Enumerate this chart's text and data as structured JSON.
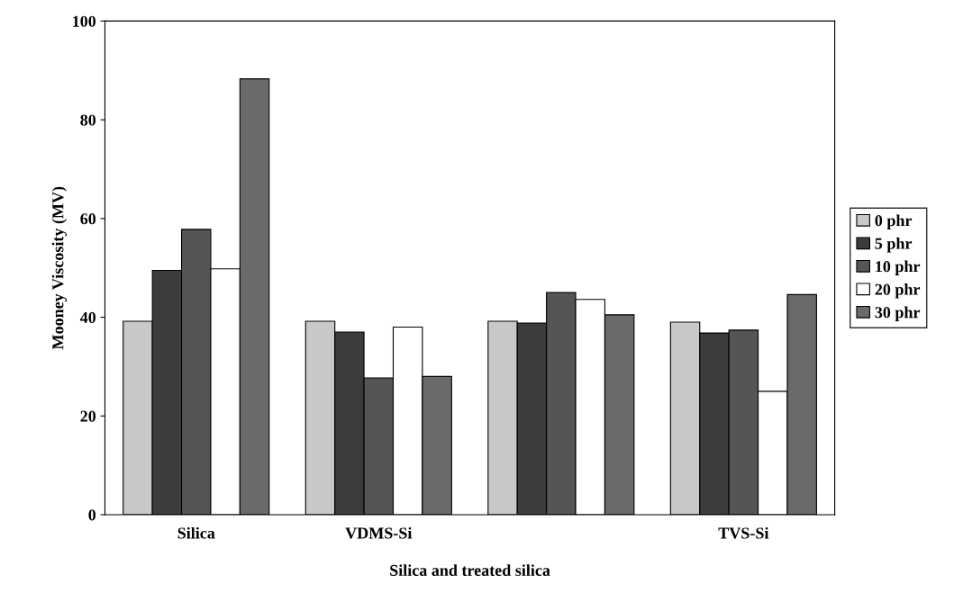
{
  "chart_data": {
    "type": "bar",
    "xlabel": "Silica and treated silica",
    "ylabel": "Mooney Viscosity (MV)",
    "categories": [
      "Silica",
      "VDMS-Si",
      null,
      "TVS-Si"
    ],
    "series": [
      {
        "name": "0 phr",
        "color": "#c8c8c8",
        "values": [
          39.2,
          39.2,
          39.2,
          39.0
        ]
      },
      {
        "name": "5 phr",
        "color": "#3c3c3c",
        "values": [
          49.5,
          37.0,
          38.8,
          36.8
        ]
      },
      {
        "name": "10 phr",
        "color": "#555555",
        "values": [
          57.8,
          27.7,
          45.0,
          37.4
        ]
      },
      {
        "name": "20 phr",
        "color": "#ffffff",
        "values": [
          49.8,
          38.0,
          43.6,
          25.0
        ]
      },
      {
        "name": "30 phr",
        "color": "#6a6a6a",
        "values": [
          88.3,
          28.0,
          40.5,
          44.6
        ]
      }
    ],
    "ylim": [
      0,
      100
    ],
    "yticks": [
      0,
      20,
      40,
      60,
      80,
      100
    ],
    "grid": false,
    "legend": "right"
  }
}
